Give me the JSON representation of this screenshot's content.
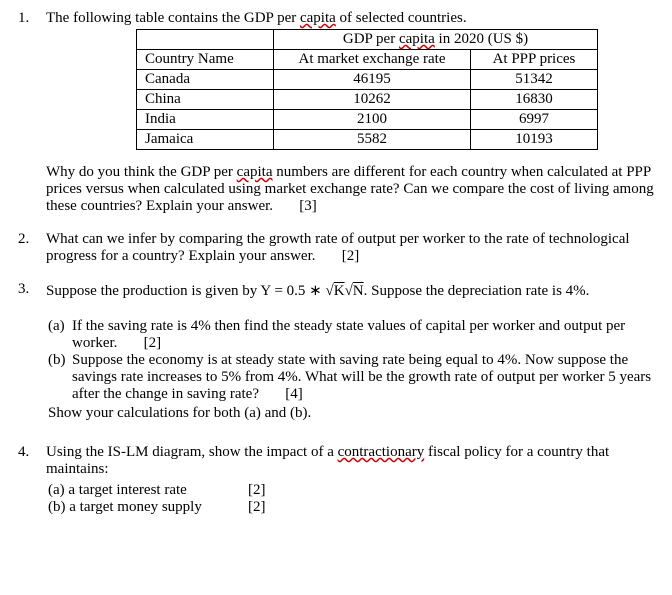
{
  "q1": {
    "number": "1.",
    "intro_a": "The following table contains the GDP per ",
    "intro_capita": "capita",
    "intro_b": " of selected countries.",
    "table": {
      "header_span_a": "GDP per ",
      "header_span_cap": "capita",
      "header_span_b": " in 2020 (US $)",
      "col_name": "Country Name",
      "col_mkt": "At market exchange rate",
      "col_ppp": "At PPP prices",
      "rows": [
        {
          "name": "Canada",
          "mkt": "46195",
          "ppp": "51342"
        },
        {
          "name": "China",
          "mkt": "10262",
          "ppp": "16830"
        },
        {
          "name": "India",
          "mkt": "2100",
          "ppp": "6997"
        },
        {
          "name": "Jamaica",
          "mkt": "5582",
          "ppp": "10193"
        }
      ]
    },
    "why_a": "Why do you think the GDP per ",
    "why_cap": "capita",
    "why_b": " numbers are different for each country when calculated at PPP prices versus when calculated using market exchange rate? Can we compare the cost of living among these countries? Explain your answer.       [3]"
  },
  "q2": {
    "number": "2.",
    "text": "What can we infer by comparing the growth rate of output per worker to the rate of technological progress for a country? Explain your answer.       [2]"
  },
  "q3": {
    "number": "3.",
    "intro_a": "Suppose the production is given by Y = 0.5 ∗ ",
    "formula": "√K√N",
    "intro_b": ". Suppose the depreciation rate is 4%.",
    "a_label": "(a)",
    "a_text": "If the saving rate is 4% then find the steady state values of capital per worker and output per worker.       [2]",
    "b_label": "(b)",
    "b_text": "Suppose the economy is at steady state with saving rate being equal to 4%. Now suppose the savings rate increases to 5% from 4%. What will be the growth rate of output per worker 5 years after the change in saving rate?       [4]",
    "show": "Show your calculations for both (a) and (b)."
  },
  "q4": {
    "number": "4.",
    "intro_a": "Using the IS-LM diagram, show the impact of a ",
    "contra": "contractionary",
    "intro_b": " fiscal policy for a country that maintains:",
    "a_label": "(a) a target interest rate",
    "a_mark": "[2]",
    "b_label": "(b) a target money supply",
    "b_mark": "[2]"
  }
}
